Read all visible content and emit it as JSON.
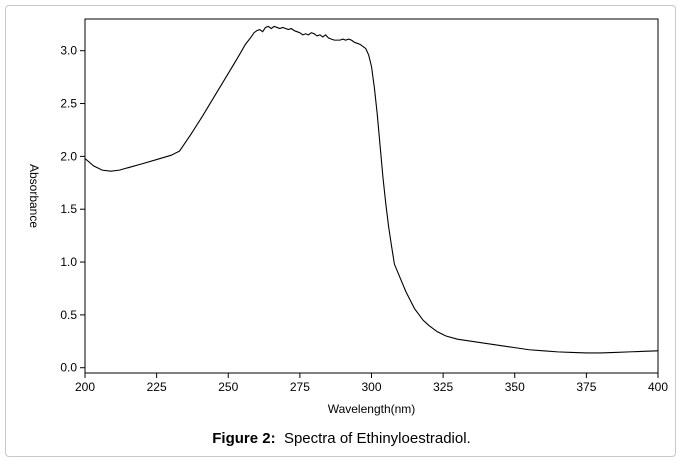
{
  "caption": {
    "label": "Figure 2:",
    "text": "Spectra of Ethinyloestradiol."
  },
  "chart_data": {
    "type": "line",
    "title": "",
    "xlabel": "Wavelength(nm)",
    "ylabel": "Absorbance",
    "xlim": [
      200,
      400
    ],
    "ylim": [
      -0.05,
      3.3
    ],
    "xticks": [
      200,
      225,
      250,
      275,
      300,
      325,
      350,
      375,
      400
    ],
    "xtick_labels": [
      "200",
      "225",
      "250",
      "275",
      "300",
      "325",
      "350",
      "375",
      "400"
    ],
    "yticks": [
      0.0,
      0.5,
      1.0,
      1.5,
      2.0,
      2.5,
      3.0
    ],
    "ytick_labels": [
      "0.0",
      "0.5",
      "1.0",
      "1.5",
      "2.0",
      "2.5",
      "3.0"
    ],
    "grid": false,
    "line_color": "#000000",
    "series": [
      {
        "x": [
          200,
          203,
          206,
          209,
          212,
          216,
          220,
          225,
          230,
          233,
          237,
          241,
          245,
          249,
          253,
          256,
          258,
          259,
          260,
          261,
          262,
          263,
          264,
          265,
          266,
          267,
          268,
          269,
          270,
          271,
          272,
          273,
          274,
          275,
          276,
          277,
          278,
          279,
          280,
          281,
          282,
          283,
          284,
          285,
          286,
          287,
          288,
          289,
          290,
          291,
          292,
          293,
          294,
          295,
          296,
          297,
          298,
          299,
          300,
          301,
          302,
          303,
          304,
          305,
          306,
          307,
          308,
          310,
          312,
          315,
          318,
          320,
          323,
          326,
          330,
          335,
          340,
          345,
          350,
          355,
          360,
          365,
          370,
          375,
          380,
          385,
          390,
          395,
          400
        ],
        "y": [
          1.98,
          1.91,
          1.87,
          1.86,
          1.87,
          1.9,
          1.93,
          1.97,
          2.01,
          2.05,
          2.21,
          2.38,
          2.56,
          2.74,
          2.92,
          3.06,
          3.13,
          3.17,
          3.19,
          3.2,
          3.18,
          3.22,
          3.23,
          3.21,
          3.23,
          3.22,
          3.21,
          3.22,
          3.21,
          3.2,
          3.21,
          3.19,
          3.18,
          3.17,
          3.15,
          3.16,
          3.15,
          3.17,
          3.16,
          3.14,
          3.15,
          3.13,
          3.15,
          3.12,
          3.11,
          3.1,
          3.1,
          3.1,
          3.11,
          3.1,
          3.11,
          3.1,
          3.08,
          3.07,
          3.06,
          3.04,
          3.02,
          2.96,
          2.85,
          2.65,
          2.4,
          2.1,
          1.8,
          1.55,
          1.33,
          1.15,
          0.98,
          0.85,
          0.72,
          0.56,
          0.45,
          0.4,
          0.34,
          0.3,
          0.27,
          0.25,
          0.23,
          0.21,
          0.19,
          0.17,
          0.16,
          0.15,
          0.145,
          0.14,
          0.14,
          0.145,
          0.15,
          0.155,
          0.16
        ]
      }
    ]
  }
}
